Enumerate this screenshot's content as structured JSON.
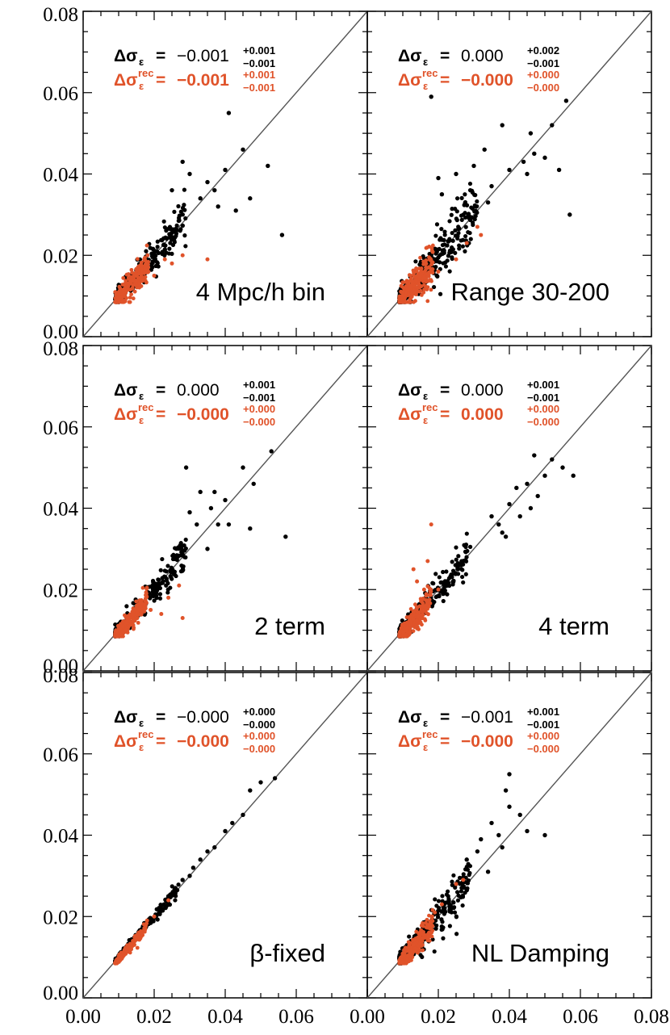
{
  "chart_data": {
    "type": "scatter",
    "layout": "3x2 panel grid",
    "xlim": [
      0.0,
      0.08
    ],
    "ylim": [
      0.0,
      0.08
    ],
    "x_tick_labels": [
      "0.00",
      "0.02",
      "0.04",
      "0.06",
      "0.00",
      "0.02",
      "0.04",
      "0.06",
      "0.08"
    ],
    "y_tick_labels": [
      "0.00",
      "0.02",
      "0.04",
      "0.06",
      "0.08"
    ],
    "diagonal": "y = x reference line in every panel",
    "series_colors": {
      "pre_reconstruction": "#000000",
      "post_reconstruction": "#e0532a"
    },
    "panels": [
      {
        "label": "4 Mpc/h bin",
        "delta_sigma": {
          "value": "−0.001",
          "plus": "+0.001",
          "minus": "−0.001"
        },
        "delta_sigma_rec": {
          "value": "−0.001",
          "plus": "+0.001",
          "minus": "−0.001"
        },
        "outliers": {
          "black": [
            [
              0.041,
              0.055
            ],
            [
              0.045,
              0.046
            ],
            [
              0.052,
              0.042
            ],
            [
              0.056,
              0.025
            ],
            [
              0.037,
              0.036
            ],
            [
              0.038,
              0.032
            ],
            [
              0.043,
              0.031
            ],
            [
              0.028,
              0.043
            ],
            [
              0.03,
              0.04
            ],
            [
              0.033,
              0.034
            ],
            [
              0.025,
              0.036
            ],
            [
              0.035,
              0.038
            ],
            [
              0.04,
              0.041
            ],
            [
              0.047,
              0.034
            ]
          ],
          "red": [
            [
              0.023,
              0.019
            ],
            [
              0.028,
              0.02
            ],
            [
              0.035,
              0.019
            ],
            [
              0.02,
              0.015
            ],
            [
              0.025,
              0.018
            ]
          ]
        }
      },
      {
        "label": "Range 30-200",
        "delta_sigma": {
          "value": "0.000",
          "plus": "+0.002",
          "minus": "−0.001"
        },
        "delta_sigma_rec": {
          "value": "−0.000",
          "plus": "+0.000",
          "minus": "−0.000"
        },
        "outliers": {
          "black": [
            [
              0.018,
              0.059
            ],
            [
              0.038,
              0.052
            ],
            [
              0.033,
              0.046
            ],
            [
              0.052,
              0.052
            ],
            [
              0.056,
              0.058
            ],
            [
              0.046,
              0.05
            ],
            [
              0.057,
              0.03
            ],
            [
              0.047,
              0.045
            ],
            [
              0.03,
              0.042
            ],
            [
              0.035,
              0.037
            ],
            [
              0.04,
              0.041
            ],
            [
              0.044,
              0.043
            ],
            [
              0.025,
              0.04
            ],
            [
              0.02,
              0.039
            ],
            [
              0.021,
              0.035
            ],
            [
              0.029,
              0.036
            ],
            [
              0.034,
              0.033
            ],
            [
              0.045,
              0.04
            ],
            [
              0.05,
              0.044
            ],
            [
              0.054,
              0.041
            ]
          ],
          "red": [
            [
              0.031,
              0.027
            ],
            [
              0.028,
              0.023
            ],
            [
              0.025,
              0.019
            ],
            [
              0.02,
              0.016
            ],
            [
              0.032,
              0.025
            ]
          ]
        }
      },
      {
        "label": "2 term",
        "delta_sigma": {
          "value": "0.000",
          "plus": "+0.001",
          "minus": "−0.001"
        },
        "delta_sigma_rec": {
          "value": "−0.000",
          "plus": "+0.000",
          "minus": "−0.000"
        },
        "outliers": {
          "black": [
            [
              0.053,
              0.054
            ],
            [
              0.045,
              0.05
            ],
            [
              0.048,
              0.046
            ],
            [
              0.057,
              0.033
            ],
            [
              0.029,
              0.05
            ],
            [
              0.033,
              0.044
            ],
            [
              0.036,
              0.04
            ],
            [
              0.04,
              0.042
            ],
            [
              0.038,
              0.036
            ],
            [
              0.032,
              0.036
            ],
            [
              0.035,
              0.03
            ],
            [
              0.041,
              0.036
            ],
            [
              0.047,
              0.035
            ],
            [
              0.037,
              0.044
            ],
            [
              0.03,
              0.039
            ]
          ],
          "red": [
            [
              0.027,
              0.021
            ],
            [
              0.024,
              0.018
            ],
            [
              0.028,
              0.013
            ],
            [
              0.022,
              0.014
            ],
            [
              0.019,
              0.015
            ]
          ]
        }
      },
      {
        "label": "4 term",
        "delta_sigma": {
          "value": "0.000",
          "plus": "+0.001",
          "minus": "−0.001"
        },
        "delta_sigma_rec": {
          "value": "0.000",
          "plus": "+0.000",
          "minus": "−0.000"
        },
        "outliers": {
          "black": [
            [
              0.052,
              0.052
            ],
            [
              0.058,
              0.048
            ],
            [
              0.05,
              0.048
            ],
            [
              0.047,
              0.053
            ],
            [
              0.045,
              0.046
            ],
            [
              0.048,
              0.043
            ],
            [
              0.042,
              0.045
            ],
            [
              0.04,
              0.041
            ],
            [
              0.037,
              0.036
            ],
            [
              0.035,
              0.038
            ],
            [
              0.038,
              0.034
            ],
            [
              0.043,
              0.038
            ],
            [
              0.055,
              0.05
            ],
            [
              0.046,
              0.04
            ],
            [
              0.039,
              0.033
            ]
          ],
          "red": [
            [
              0.018,
              0.036
            ],
            [
              0.017,
              0.027
            ],
            [
              0.013,
              0.025
            ],
            [
              0.014,
              0.022
            ],
            [
              0.02,
              0.02
            ],
            [
              0.016,
              0.02
            ]
          ]
        }
      },
      {
        "label": "β-fixed",
        "delta_sigma": {
          "value": "−0.000",
          "plus": "+0.000",
          "minus": "−0.000"
        },
        "delta_sigma_rec": {
          "value": "−0.000",
          "plus": "+0.000",
          "minus": "−0.000"
        },
        "outliers": {
          "black": [
            [
              0.05,
              0.053
            ],
            [
              0.054,
              0.054
            ],
            [
              0.047,
              0.051
            ],
            [
              0.045,
              0.045
            ],
            [
              0.042,
              0.043
            ],
            [
              0.04,
              0.041
            ],
            [
              0.037,
              0.037
            ],
            [
              0.035,
              0.036
            ],
            [
              0.033,
              0.034
            ],
            [
              0.031,
              0.032
            ],
            [
              0.03,
              0.03
            ],
            [
              0.028,
              0.029
            ],
            [
              0.026,
              0.027
            ],
            [
              0.024,
              0.025
            ]
          ],
          "red": [
            [
              0.02,
              0.02
            ],
            [
              0.018,
              0.019
            ],
            [
              0.016,
              0.016
            ],
            [
              0.014,
              0.014
            ],
            [
              0.024,
              0.024
            ]
          ]
        }
      },
      {
        "label": "NL Damping",
        "delta_sigma": {
          "value": "−0.001",
          "plus": "+0.001",
          "minus": "−0.001"
        },
        "delta_sigma_rec": {
          "value": "−0.000",
          "plus": "+0.000",
          "minus": "−0.000"
        },
        "outliers": {
          "black": [
            [
              0.04,
              0.055
            ],
            [
              0.039,
              0.051
            ],
            [
              0.04,
              0.047
            ],
            [
              0.043,
              0.045
            ],
            [
              0.05,
              0.04
            ],
            [
              0.037,
              0.04
            ],
            [
              0.035,
              0.043
            ],
            [
              0.032,
              0.039
            ],
            [
              0.031,
              0.036
            ],
            [
              0.034,
              0.031
            ],
            [
              0.028,
              0.034
            ],
            [
              0.038,
              0.037
            ],
            [
              0.045,
              0.041
            ]
          ],
          "red": [
            [
              0.027,
              0.029
            ],
            [
              0.025,
              0.028
            ],
            [
              0.021,
              0.023
            ],
            [
              0.019,
              0.021
            ],
            [
              0.015,
              0.016
            ]
          ]
        }
      }
    ]
  }
}
